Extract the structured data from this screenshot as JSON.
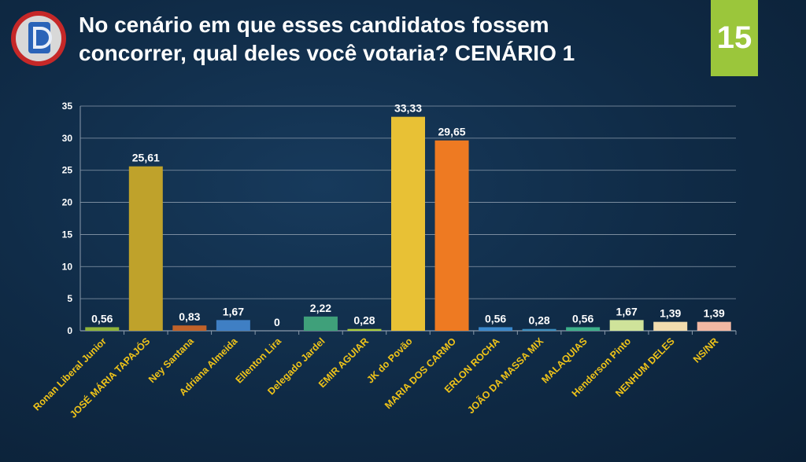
{
  "header": {
    "title_line1": "No cenário em que esses candidatos fossem",
    "title_line2": "concorrer, qual deles você votaria? CENÁRIO 1",
    "page_number": "15"
  },
  "colors": {
    "background": "#0f2a45",
    "badge": "#9bc63b",
    "category_text": "#f0c419",
    "gridline": "#8a9aab"
  },
  "chart_data": {
    "type": "bar",
    "title": "",
    "xlabel": "",
    "ylabel": "",
    "ylim": [
      0,
      35
    ],
    "yticks": [
      0,
      5,
      10,
      15,
      20,
      25,
      30,
      35
    ],
    "grid": true,
    "categories": [
      "Ronan Liberal Junior",
      "JOSÉ MÁRIA TAPAJÓS",
      "Ney Santana",
      "Adriana Almeida",
      "Ellenton Lira",
      "Delegado Jardel",
      "EMIR AGUIAR",
      "JK do Povão",
      "MARIA DOS CARMO",
      "ERLON ROCHA",
      "JOÃO DA MASSA MIX",
      "MALAQUIAS",
      "Henderson Pinto",
      "NENHUM DELES",
      "NS/NR"
    ],
    "values": [
      0.56,
      25.61,
      0.83,
      1.67,
      0,
      2.22,
      0.28,
      33.33,
      29.65,
      0.56,
      0.28,
      0.56,
      1.67,
      1.39,
      1.39
    ],
    "value_labels": [
      "0,56",
      "25,61",
      "0,83",
      "1,67",
      "0",
      "2,22",
      "0,28",
      "33,33",
      "29,65",
      "0,56",
      "0,28",
      "0,56",
      "1,67",
      "1,39",
      "1,39"
    ],
    "bar_colors": [
      "#8fb33a",
      "#bfa22b",
      "#c0622a",
      "#3f7fc4",
      "#8a8f98",
      "#3fa07a",
      "#aacd3a",
      "#e8c135",
      "#ee7a22",
      "#3a88cc",
      "#3d8fc0",
      "#3db08a",
      "#cfe39a",
      "#f2dcae",
      "#f2b8a3"
    ]
  }
}
